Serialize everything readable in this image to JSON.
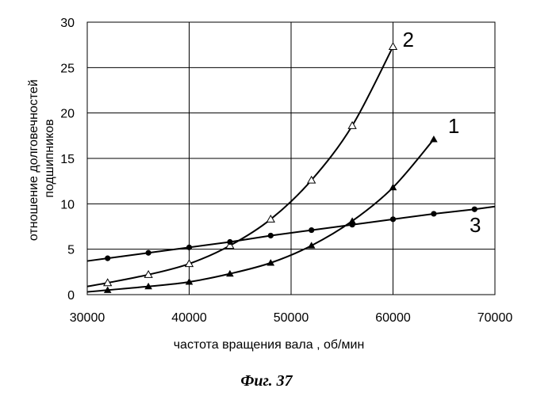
{
  "chart_data": {
    "type": "line",
    "xlabel": "частота вращения вала , об/мин",
    "ylabel": [
      "отношение долговечностей",
      "подшипников"
    ],
    "xlim": [
      30000,
      70000
    ],
    "ylim": [
      0,
      30
    ],
    "x_ticks": [
      "30000",
      "40000",
      "50000",
      "60000",
      "70000"
    ],
    "y_ticks": [
      "0",
      "5",
      "10",
      "15",
      "20",
      "25",
      "30"
    ],
    "grid": "major",
    "series": [
      {
        "name": "1",
        "marker": "filled-triangle",
        "x": [
          32000,
          36000,
          40000,
          44000,
          48000,
          52000,
          56000,
          60000,
          64000
        ],
        "y": [
          0.5,
          0.9,
          1.4,
          2.3,
          3.5,
          5.4,
          8.1,
          11.8,
          17.1
        ],
        "line_start": [
          30000,
          0.3
        ]
      },
      {
        "name": "2",
        "marker": "open-triangle",
        "x": [
          32000,
          36000,
          40000,
          44000,
          48000,
          52000,
          56000,
          60000
        ],
        "y": [
          1.3,
          2.2,
          3.4,
          5.4,
          8.3,
          12.6,
          18.6,
          27.3
        ],
        "line_start": [
          30000,
          0.9
        ]
      },
      {
        "name": "3",
        "marker": "filled-circle",
        "x": [
          32000,
          36000,
          40000,
          44000,
          48000,
          52000,
          56000,
          60000,
          64000,
          68000
        ],
        "y": [
          4.0,
          4.6,
          5.2,
          5.8,
          6.5,
          7.1,
          7.7,
          8.3,
          8.9,
          9.4
        ],
        "line_start": [
          30000,
          3.7
        ],
        "line_end": [
          70000,
          9.7
        ]
      }
    ]
  },
  "caption": "Фиг. 37"
}
